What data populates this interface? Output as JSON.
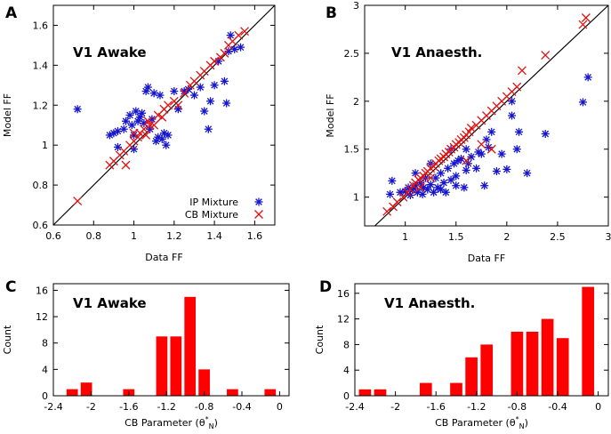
{
  "colors": {
    "ip": "#1515d0",
    "cb": "#e01010",
    "bar": "#ff0000"
  },
  "chart_data": [
    {
      "letter": "A",
      "type": "scatter",
      "title": "V1 Awake",
      "xlabel": "Data FF",
      "ylabel": "Model FF",
      "xlim": [
        0.6,
        1.7
      ],
      "ylim": [
        0.6,
        1.7
      ],
      "xticks": [
        "0.6",
        "0.8",
        "1",
        "1.2",
        "1.4",
        "1.6"
      ],
      "xtick_values": [
        0.6,
        0.8,
        1.0,
        1.2,
        1.4,
        1.6
      ],
      "yticks": [
        "0.6",
        "0.8",
        "1",
        "1.2",
        "1.4",
        "1.6"
      ],
      "ytick_values": [
        0.6,
        0.8,
        1.0,
        1.2,
        1.4,
        1.6
      ],
      "legend": [
        {
          "label": "IP Mixture",
          "marker": "star"
        },
        {
          "label": "CB Mixture",
          "marker": "x"
        }
      ],
      "series": [
        {
          "name": "IP Mixture",
          "marker": "star",
          "points": [
            [
              0.72,
              1.18
            ],
            [
              0.88,
              1.05
            ],
            [
              0.9,
              1.06
            ],
            [
              0.92,
              1.07
            ],
            [
              0.95,
              1.08
            ],
            [
              0.96,
              1.12
            ],
            [
              0.98,
              1.15
            ],
            [
              0.99,
              1.1
            ],
            [
              1.0,
              1.05
            ],
            [
              1.01,
              1.17
            ],
            [
              1.02,
              1.12
            ],
            [
              1.03,
              1.14
            ],
            [
              1.04,
              1.16
            ],
            [
              1.05,
              1.11
            ],
            [
              1.06,
              1.27
            ],
            [
              1.07,
              1.29
            ],
            [
              1.08,
              1.08
            ],
            [
              1.09,
              1.13
            ],
            [
              1.1,
              1.26
            ],
            [
              1.11,
              1.02
            ],
            [
              1.12,
              1.04
            ],
            [
              1.13,
              1.25
            ],
            [
              1.14,
              1.03
            ],
            [
              1.15,
              1.06
            ],
            [
              1.16,
              1.0
            ],
            [
              1.17,
              1.05
            ],
            [
              1.2,
              1.27
            ],
            [
              1.22,
              1.18
            ],
            [
              1.25,
              1.27
            ],
            [
              1.27,
              1.28
            ],
            [
              1.3,
              1.25
            ],
            [
              1.33,
              1.29
            ],
            [
              1.35,
              1.17
            ],
            [
              1.37,
              1.08
            ],
            [
              1.38,
              1.22
            ],
            [
              1.4,
              1.3
            ],
            [
              1.42,
              1.42
            ],
            [
              1.45,
              1.32
            ],
            [
              1.46,
              1.21
            ],
            [
              1.47,
              1.47
            ],
            [
              1.48,
              1.55
            ],
            [
              1.5,
              1.48
            ],
            [
              1.53,
              1.49
            ],
            [
              0.92,
              0.99
            ],
            [
              1.0,
              0.98
            ]
          ]
        },
        {
          "name": "CB Mixture",
          "marker": "x",
          "points": [
            [
              0.72,
              0.72
            ],
            [
              0.88,
              0.9
            ],
            [
              0.9,
              0.92
            ],
            [
              0.93,
              0.95
            ],
            [
              0.95,
              0.97
            ],
            [
              0.96,
              0.9
            ],
            [
              0.98,
              1.0
            ],
            [
              1.0,
              1.02
            ],
            [
              1.02,
              1.04
            ],
            [
              1.03,
              1.06
            ],
            [
              1.05,
              1.08
            ],
            [
              1.06,
              1.05
            ],
            [
              1.08,
              1.1
            ],
            [
              1.1,
              1.1
            ],
            [
              1.12,
              1.15
            ],
            [
              1.14,
              1.14
            ],
            [
              1.15,
              1.18
            ],
            [
              1.17,
              1.2
            ],
            [
              1.2,
              1.22
            ],
            [
              1.22,
              1.2
            ],
            [
              1.25,
              1.26
            ],
            [
              1.28,
              1.3
            ],
            [
              1.3,
              1.32
            ],
            [
              1.33,
              1.35
            ],
            [
              1.35,
              1.37
            ],
            [
              1.38,
              1.4
            ],
            [
              1.4,
              1.42
            ],
            [
              1.43,
              1.44
            ],
            [
              1.45,
              1.46
            ],
            [
              1.47,
              1.5
            ],
            [
              1.49,
              1.52
            ],
            [
              1.52,
              1.55
            ],
            [
              1.55,
              1.57
            ],
            [
              1.0,
              1.06
            ],
            [
              1.07,
              1.12
            ]
          ]
        }
      ]
    },
    {
      "letter": "B",
      "type": "scatter",
      "title": "V1 Anaesth.",
      "xlabel": "Data FF",
      "ylabel": "Model FF",
      "xlim": [
        0.6,
        3.0
      ],
      "ylim": [
        0.7,
        3.0
      ],
      "xticks": [
        "1",
        "1.5",
        "2",
        "2.5",
        "3"
      ],
      "xtick_values": [
        1.0,
        1.5,
        2.0,
        2.5,
        3.0
      ],
      "yticks": [
        "1",
        "1.5",
        "2",
        "2.5",
        "3"
      ],
      "ytick_values": [
        1.0,
        1.5,
        2.0,
        2.5,
        3.0
      ],
      "series": [
        {
          "name": "IP Mixture",
          "marker": "star",
          "points": [
            [
              0.85,
              1.03
            ],
            [
              0.87,
              1.17
            ],
            [
              0.95,
              1.05
            ],
            [
              1.0,
              1.06
            ],
            [
              1.03,
              1.1
            ],
            [
              1.05,
              1.02
            ],
            [
              1.07,
              1.08
            ],
            [
              1.1,
              1.12
            ],
            [
              1.1,
              1.25
            ],
            [
              1.12,
              1.05
            ],
            [
              1.15,
              1.15
            ],
            [
              1.17,
              1.03
            ],
            [
              1.2,
              1.2
            ],
            [
              1.22,
              1.08
            ],
            [
              1.25,
              1.13
            ],
            [
              1.28,
              1.05
            ],
            [
              1.3,
              1.2
            ],
            [
              1.32,
              1.1
            ],
            [
              1.35,
              1.25
            ],
            [
              1.38,
              1.15
            ],
            [
              1.4,
              1.05
            ],
            [
              1.42,
              1.3
            ],
            [
              1.45,
              1.18
            ],
            [
              1.48,
              1.35
            ],
            [
              1.5,
              1.22
            ],
            [
              1.52,
              1.38
            ],
            [
              1.55,
              1.4
            ],
            [
              1.58,
              1.1
            ],
            [
              1.6,
              1.28
            ],
            [
              1.62,
              1.35
            ],
            [
              1.65,
              1.42
            ],
            [
              1.7,
              1.3
            ],
            [
              1.72,
              1.47
            ],
            [
              1.75,
              1.45
            ],
            [
              1.78,
              1.12
            ],
            [
              1.8,
              1.6
            ],
            [
              1.82,
              1.52
            ],
            [
              1.85,
              1.68
            ],
            [
              1.9,
              1.27
            ],
            [
              1.95,
              1.45
            ],
            [
              2.0,
              1.29
            ],
            [
              2.05,
              1.85
            ],
            [
              2.1,
              1.5
            ],
            [
              2.12,
              1.68
            ],
            [
              2.2,
              1.25
            ],
            [
              2.38,
              1.66
            ],
            [
              2.75,
              1.99
            ],
            [
              2.8,
              2.25
            ],
            [
              1.25,
              1.35
            ],
            [
              1.45,
              1.5
            ],
            [
              1.6,
              1.5
            ],
            [
              1.18,
              1.1
            ],
            [
              1.35,
              1.08
            ],
            [
              1.5,
              1.12
            ],
            [
              2.05,
              2.0
            ]
          ]
        },
        {
          "name": "CB Mixture",
          "marker": "x",
          "points": [
            [
              0.82,
              0.85
            ],
            [
              0.88,
              0.9
            ],
            [
              0.92,
              0.95
            ],
            [
              0.98,
              1.0
            ],
            [
              1.02,
              1.05
            ],
            [
              1.05,
              1.08
            ],
            [
              1.08,
              1.12
            ],
            [
              1.1,
              1.15
            ],
            [
              1.13,
              1.18
            ],
            [
              1.15,
              1.2
            ],
            [
              1.18,
              1.22
            ],
            [
              1.2,
              1.25
            ],
            [
              1.22,
              1.27
            ],
            [
              1.25,
              1.3
            ],
            [
              1.28,
              1.32
            ],
            [
              1.3,
              1.35
            ],
            [
              1.33,
              1.38
            ],
            [
              1.35,
              1.4
            ],
            [
              1.38,
              1.42
            ],
            [
              1.4,
              1.45
            ],
            [
              1.43,
              1.47
            ],
            [
              1.45,
              1.5
            ],
            [
              1.48,
              1.52
            ],
            [
              1.5,
              1.55
            ],
            [
              1.53,
              1.57
            ],
            [
              1.55,
              1.6
            ],
            [
              1.58,
              1.62
            ],
            [
              1.6,
              1.65
            ],
            [
              1.63,
              1.68
            ],
            [
              1.65,
              1.72
            ],
            [
              1.7,
              1.75
            ],
            [
              1.75,
              1.8
            ],
            [
              1.8,
              1.85
            ],
            [
              1.85,
              1.9
            ],
            [
              1.9,
              1.95
            ],
            [
              1.95,
              2.0
            ],
            [
              2.0,
              2.05
            ],
            [
              2.05,
              2.1
            ],
            [
              2.1,
              2.15
            ],
            [
              2.15,
              2.32
            ],
            [
              2.38,
              2.48
            ],
            [
              2.75,
              2.8
            ],
            [
              2.78,
              2.87
            ],
            [
              1.6,
              1.38
            ],
            [
              1.75,
              1.55
            ],
            [
              1.85,
              1.5
            ],
            [
              1.15,
              1.1
            ],
            [
              1.25,
              1.2
            ]
          ]
        }
      ]
    },
    {
      "letter": "C",
      "type": "bar",
      "title": "V1 Awake",
      "xlabel": "CB Parameter (θ*N)",
      "ylabel": "Count",
      "xlim": [
        -2.4,
        0.1
      ],
      "ylim": [
        0,
        17
      ],
      "xticks": [
        "-2.4",
        "-2",
        "-1.6",
        "-1.2",
        "-0.8",
        "-0.4",
        "0"
      ],
      "xtick_values": [
        -2.4,
        -2.0,
        -1.6,
        -1.2,
        -0.8,
        -0.4,
        0.0
      ],
      "yticks": [
        "0",
        "4",
        "8",
        "12",
        "16"
      ],
      "ytick_values": [
        0,
        4,
        8,
        12,
        16
      ],
      "bar_width": 0.12,
      "bars": [
        {
          "x": -2.2,
          "value": 1
        },
        {
          "x": -2.05,
          "value": 2
        },
        {
          "x": -1.6,
          "value": 1
        },
        {
          "x": -1.25,
          "value": 9
        },
        {
          "x": -1.1,
          "value": 9
        },
        {
          "x": -0.95,
          "value": 15
        },
        {
          "x": -0.8,
          "value": 4
        },
        {
          "x": -0.5,
          "value": 1
        },
        {
          "x": -0.1,
          "value": 1
        }
      ]
    },
    {
      "letter": "D",
      "type": "bar",
      "title": "V1 Anaesth.",
      "xlabel": "CB Parameter (θ*N)",
      "ylabel": "Count",
      "xlim": [
        -2.4,
        0.1
      ],
      "ylim": [
        0,
        17.5
      ],
      "xticks": [
        "-2.4",
        "-2",
        "-1.6",
        "-1.2",
        "-0.8",
        "-0.4",
        "0"
      ],
      "xtick_values": [
        -2.4,
        -2.0,
        -1.6,
        -1.2,
        -0.8,
        -0.4,
        0.0
      ],
      "yticks": [
        "0",
        "4",
        "8",
        "12",
        "16"
      ],
      "ytick_values": [
        0,
        4,
        8,
        12,
        16
      ],
      "bar_width": 0.12,
      "bars": [
        {
          "x": -2.3,
          "value": 1
        },
        {
          "x": -2.15,
          "value": 1
        },
        {
          "x": -1.7,
          "value": 2
        },
        {
          "x": -1.4,
          "value": 2
        },
        {
          "x": -1.25,
          "value": 6
        },
        {
          "x": -1.1,
          "value": 8
        },
        {
          "x": -0.8,
          "value": 10
        },
        {
          "x": -0.65,
          "value": 10
        },
        {
          "x": -0.5,
          "value": 12
        },
        {
          "x": -0.35,
          "value": 9
        },
        {
          "x": -0.1,
          "value": 17
        }
      ]
    }
  ]
}
